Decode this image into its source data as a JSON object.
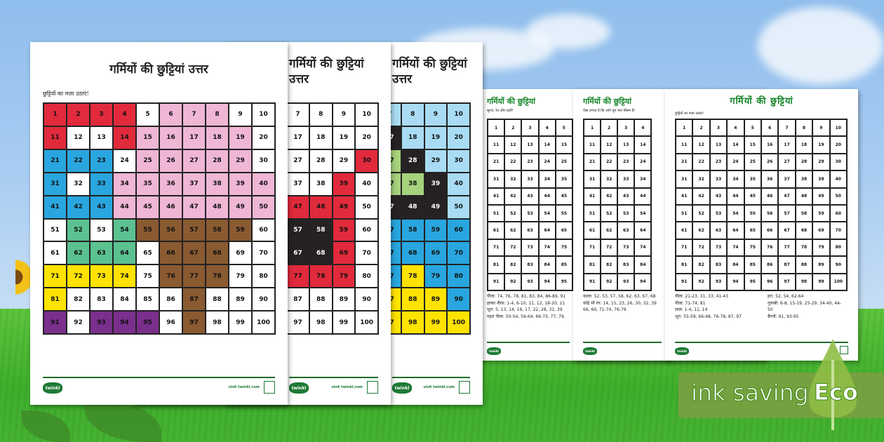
{
  "palette": {
    "R": "#e12a3c",
    "P": "#efb6d6",
    "B": "#29a6df",
    "G": "#5cc190",
    "N": "#8a5a31",
    "Y": "#ffe300",
    "U": "#7a2f8c",
    "W": "#ffffff",
    "K": "#262223",
    "L": "#a9dcf4",
    "V": "#a7d27c"
  },
  "answer_sheets": [
    {
      "title": "गर्मियों की छुट्टियां उत्तर",
      "subtitle": "छुट्टियों का मज़ा उठाएं!",
      "rows": [
        "RRRRWPPPWW",
        "RWWRPPPPPW",
        "BBBWPPPPPW",
        "BWBPPPPPPP",
        "BBBPPPPPPP",
        "WGWGNNNNNW",
        "WGGGWNNNWW",
        "YYYYWNNNWW",
        "YWWWWWNWWW",
        "UWUUUWNWWW"
      ],
      "footer": "visit twinkl.com",
      "logo": "twinkl"
    },
    {
      "title": "गर्मियों की छुट्टियां उत्तर",
      "subtitle": "",
      "rows": [
        "WWWWWWWWWW",
        "WWWWWWWWWW",
        "WWWWWWWWWR",
        "WWWWWWWWRW",
        "WWWWWWRRRW",
        "WWWWWWKKRW",
        "WWWWWWKKRW",
        "WWWWWWRRRW",
        "WWWWWWWWWW",
        "WWWWWWWWWW"
      ],
      "footer": "visit twinkl.com",
      "logo": "twinkl"
    },
    {
      "title": "गर्मियों की छुट्टियां उत्तर",
      "subtitle": "",
      "rows": [
        "WWWWWWLLLL",
        "WWWWWWKLLL",
        "WWWWWWVKLL",
        "WWWWWWVVKL",
        "WWWWWWKKKL",
        "WWWWWWBBBB",
        "WWWWWWBBBB",
        "WWWWWWBYBB",
        "WWWWWWYYYB",
        "WWWWWWYYYY"
      ],
      "footer": "visit twinkl.com",
      "logo": "twinkl"
    }
  ],
  "activity_sheets": [
    {
      "title": "गर्मियों की छुट्टियां",
      "subtitle": "सूरज, रेत और लहरें!",
      "answers_left": [
        "पीला: 74, 76, 78, 81, 83, 84, 86-89, 91",
        "हल्का नीला: 1-4, 6-10, 11, 12, 18-20, 21",
        "भूरा: 5, 13, 14, 16, 17, 22, 28, 31, 39",
        "गहरा नीला: 50-54, 56-64, 66-73, 77, 79,"
      ],
      "answers_right": [],
      "logo": "twinkl"
    },
    {
      "title": "गर्मियों की छुट्टियां",
      "subtitle": "ऐसा लगता है कि आगे धूप भरा मौसम है!",
      "answers_left": [
        "काला: 52, 53, 57, 58, 62, 63, 67, 68",
        "कोई भी रंग: 14, 15, 23, 26, 30, 32, 39",
        "66, 69, 71-74, 76-79"
      ],
      "answers_right": [],
      "logo": "twinkl"
    },
    {
      "title": "गर्मियों की छुट्टियां",
      "subtitle": "छुट्टियों का मज़ा उठाएं!",
      "answers_left": [
        "नीला: 21-23, 31, 33, 41-43",
        "पीला: 71-74, 81",
        "लाल: 1-4, 11, 14",
        "भूरा: 55-59, 66-68, 76-78, 87, 97"
      ],
      "answers_right": [
        "हरा: 52, 54, 62-64",
        "गुलाबी: 6-8, 15-19, 25-29, 34-40, 44-",
        "50",
        "बैंगनी: 91, 93-95"
      ],
      "logo": "twinkl"
    }
  ],
  "eco_badge": {
    "label": "ink saving",
    "word": "Eco",
    "icon": "leaf-drop-icon",
    "color": "#7aa042"
  }
}
